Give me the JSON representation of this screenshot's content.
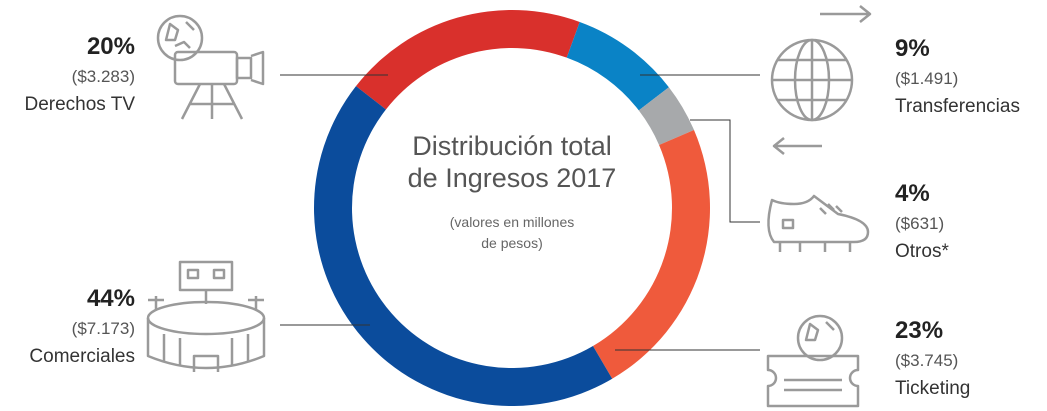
{
  "chart_data": {
    "type": "pie",
    "donut": true,
    "title": "Distribución total de Ingresos 2017",
    "subtitle": "(valores en millones de pesos)",
    "categories": [
      "Derechos TV",
      "Transferencias",
      "Otros*",
      "Ticketing",
      "Comerciales"
    ],
    "values": [
      20,
      9,
      4,
      23,
      44
    ],
    "value_labels": [
      "20%",
      "9%",
      "4%",
      "23%",
      "44%"
    ],
    "amounts": [
      "($3.283)",
      "($1.491)",
      "($631)",
      "($3.745)",
      "($7.173)"
    ],
    "colors": [
      "#d9302c",
      "#0a83c6",
      "#a7a9ab",
      "#ef5a3c",
      "#0b4c9c"
    ]
  }
}
